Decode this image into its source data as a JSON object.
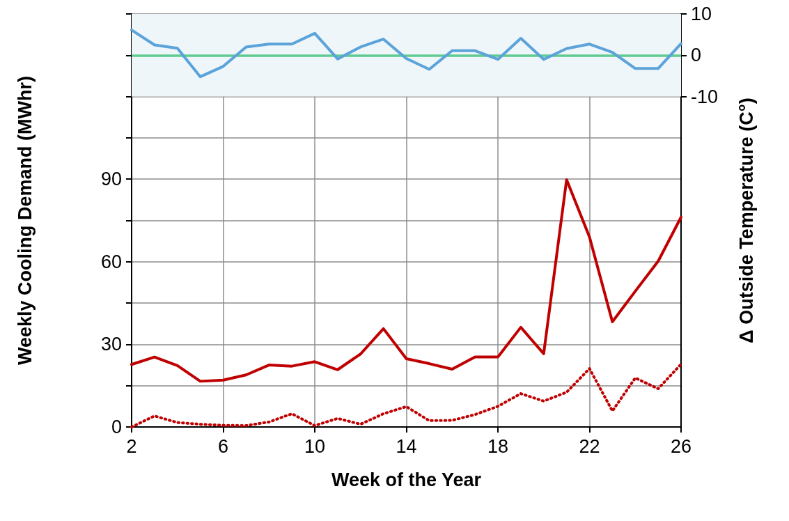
{
  "chart_data": {
    "type": "line",
    "xlabel": "Week of the Year",
    "ylabel": "Weekly Cooling Demand (MWhr)",
    "y2label": "Δ Outside Temperature (C°)",
    "x": [
      2,
      3,
      4,
      5,
      6,
      7,
      8,
      9,
      10,
      11,
      12,
      13,
      14,
      15,
      16,
      17,
      18,
      19,
      20,
      21,
      22,
      23,
      24,
      25,
      26
    ],
    "series": [
      {
        "color": "#c00000",
        "line_style": "solid",
        "values": [
          22.7,
          25.4,
          22.3,
          16.6,
          17.0,
          18.9,
          22.5,
          22.1,
          23.7,
          20.8,
          26.5,
          35.7,
          24.8,
          23,
          21,
          25.4,
          25.4,
          36.2,
          26.6,
          89.8,
          69,
          38.2,
          49.3,
          60.2,
          76.2
        ]
      },
      {
        "color": "#c00000",
        "line_style": "dotted",
        "values": [
          0,
          4.0,
          1.6,
          1,
          0.6,
          0.5,
          1.8,
          4.8,
          0.5,
          3.1,
          1,
          4.8,
          7.4,
          2.3,
          2.4,
          4.5,
          7.5,
          12.1,
          9.4,
          12.6,
          21.2,
          5.8,
          17.8,
          13.9,
          22.8
        ]
      },
      {
        "color": "#5ba3d9",
        "line_style": "solid",
        "axis": "y2",
        "values": [
          6.1,
          2.5,
          1.7,
          -5.2,
          -2.7,
          2.0,
          2.7,
          2.7,
          5.3,
          -0.9,
          2.0,
          3.9,
          -0.8,
          -3.4,
          1.1,
          1.1,
          -1.0,
          4.1,
          -1.0,
          1.6,
          2.7,
          0.7,
          -3.2,
          -3.2,
          2.8
        ]
      }
    ],
    "xlim": [
      2,
      26
    ],
    "xticks": [
      2,
      6,
      10,
      14,
      18,
      22,
      26
    ],
    "ylim": [
      0,
      150
    ],
    "yticks": [
      0,
      {
        "value": 15,
        "label": null
      },
      30,
      {
        "value": 45,
        "label": null
      },
      60,
      {
        "value": 75,
        "label": null
      },
      90,
      {
        "value": 105,
        "label": null
      },
      {
        "value": 120,
        "label": null
      },
      {
        "value": 135,
        "label": null
      },
      {
        "value": 150,
        "label": null
      }
    ],
    "y2lim": [
      -90,
      10
    ],
    "y2ticks": [
      -10,
      0,
      10
    ],
    "ref_lines": [
      {
        "axis": "y2",
        "value": 0,
        "color": "#5fcb8f"
      }
    ],
    "bands": [
      {
        "axis": "y2",
        "from": -10,
        "to": 10,
        "color": "#eef6fa"
      }
    ],
    "grid": true,
    "marker": "none"
  }
}
